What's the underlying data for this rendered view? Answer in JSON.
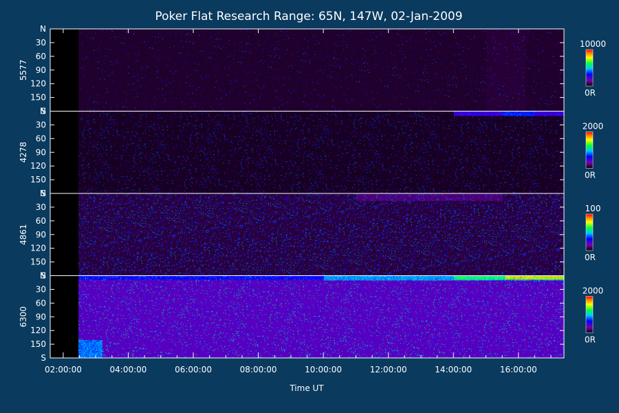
{
  "chart_data": {
    "type": "heatmap",
    "title": "Poker Flat Research Range: 65N, 147W, 02-Jan-2009",
    "xlabel": "Time UT",
    "x_ticks": [
      "02:00:00",
      "04:00:00",
      "06:00:00",
      "08:00:00",
      "10:00:00",
      "12:00:00",
      "14:00:00",
      "16:00:00"
    ],
    "x_tick_hours": [
      2,
      4,
      6,
      8,
      10,
      12,
      14,
      16
    ],
    "x_range_hours": [
      1.6,
      17.4
    ],
    "panels": [
      {
        "name": "5577",
        "y_ticks": [
          "N",
          "30",
          "60",
          "90",
          "120",
          "150",
          "S"
        ],
        "colorbar_max": "10000",
        "colorbar_min": "0R",
        "noise": 0.02,
        "base": 0.04,
        "features": [
          {
            "t_start": 15.0,
            "t_end": 16.2,
            "y_start": 0,
            "y_end": 180,
            "intensity": 0.05
          }
        ]
      },
      {
        "name": "4278",
        "y_ticks": [
          "N",
          "30",
          "60",
          "90",
          "120",
          "150",
          "S"
        ],
        "colorbar_max": "2000",
        "colorbar_min": "0R",
        "noise": 0.05,
        "base": 0.03,
        "features": [
          {
            "t_start": 14.0,
            "t_end": 17.4,
            "y_start": 0,
            "y_end": 10,
            "intensity": 0.25
          },
          {
            "t_start": 15.5,
            "t_end": 16.5,
            "y_start": 0,
            "y_end": 10,
            "intensity": 0.35
          }
        ]
      },
      {
        "name": "4861",
        "y_ticks": [
          "N",
          "30",
          "60",
          "90",
          "120",
          "150",
          "S"
        ],
        "colorbar_max": "100",
        "colorbar_min": "0R",
        "noise": 0.14,
        "base": 0.05,
        "features": [
          {
            "t_start": 11.0,
            "t_end": 15.5,
            "y_start": 0,
            "y_end": 15,
            "intensity": 0.1
          }
        ]
      },
      {
        "name": "6300",
        "y_ticks": [
          "N",
          "30",
          "60",
          "90",
          "120",
          "150",
          "S"
        ],
        "colorbar_max": "2000",
        "colorbar_min": "0R",
        "noise": 0.05,
        "base": 0.2,
        "features": [
          {
            "t_start": 2.0,
            "t_end": 17.4,
            "y_start": 0,
            "y_end": 8,
            "intensity": 0.32
          },
          {
            "t_start": 10.0,
            "t_end": 17.4,
            "y_start": 0,
            "y_end": 10,
            "intensity": 0.45
          },
          {
            "t_start": 14.0,
            "t_end": 17.4,
            "y_start": 0,
            "y_end": 8,
            "intensity": 0.6
          },
          {
            "t_start": 15.6,
            "t_end": 17.4,
            "y_start": 0,
            "y_end": 6,
            "intensity": 0.8
          },
          {
            "t_start": 2.0,
            "t_end": 3.2,
            "y_start": 140,
            "y_end": 180,
            "intensity": 0.42
          }
        ]
      }
    ],
    "grid": false,
    "legend": "colorbars-right"
  },
  "colors": {
    "background": "#0a3a5e",
    "plot_background": "#000000",
    "axes": "#ffffff"
  }
}
